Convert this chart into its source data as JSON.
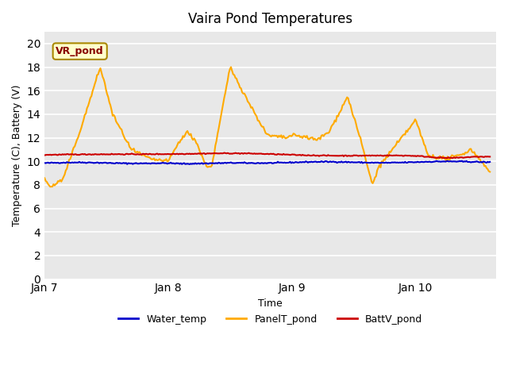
{
  "title": "Vaira Pond Temperatures",
  "xlabel": "Time",
  "ylabel": "Temperature (C), Battery (V)",
  "ylim": [
    0,
    21
  ],
  "yticks": [
    0,
    2,
    4,
    6,
    8,
    10,
    12,
    14,
    16,
    18,
    20
  ],
  "background_color": "#e8e8e8",
  "fig_background": "#ffffff",
  "annotation_text": "VR_pond",
  "annotation_bg": "#ffffcc",
  "annotation_border": "#aa8800",
  "water_temp_color": "#0000cc",
  "panel_temp_color": "#ffaa00",
  "batt_color": "#cc0000",
  "legend_labels": [
    "Water_temp",
    "PanelT_pond",
    "BattV_pond"
  ],
  "x_tick_labels": [
    "Jan 7",
    "Jan 8",
    "Jan 9",
    "Jan 10",
    ""
  ],
  "x_tick_positions": [
    0,
    1,
    2,
    3,
    3.5
  ],
  "n_points": 400
}
